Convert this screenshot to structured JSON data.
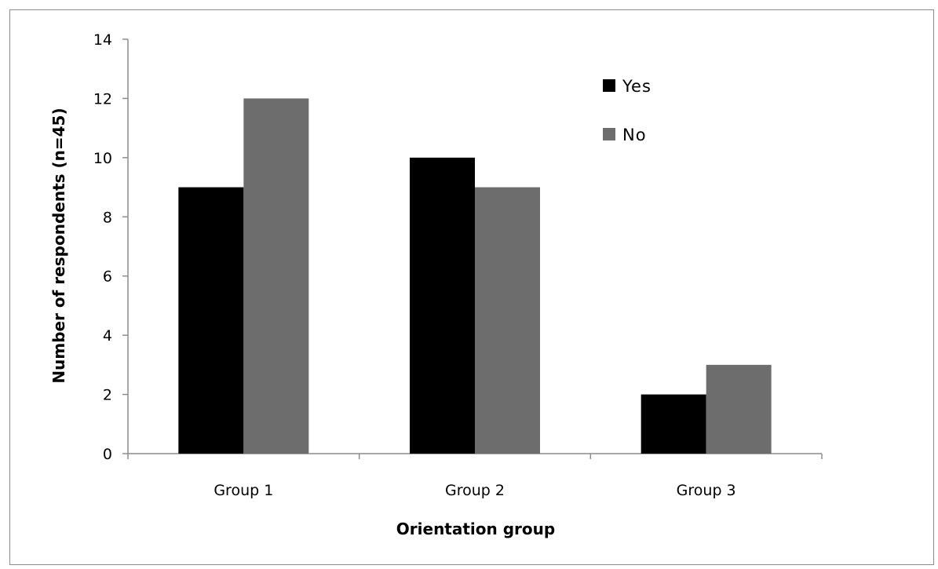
{
  "chart_data": {
    "type": "bar",
    "title": "",
    "xlabel": "Orientation group",
    "ylabel": "Number of respondents (n=45)",
    "categories": [
      "Group 1",
      "Group 2",
      "Group 3"
    ],
    "series": [
      {
        "name": "Yes",
        "values": [
          9,
          10,
          2
        ],
        "color": "#000000"
      },
      {
        "name": "No",
        "values": [
          12,
          9,
          3
        ],
        "color": "#6d6d6d"
      }
    ],
    "ylim": [
      0,
      14
    ],
    "yticks": [
      0,
      2,
      4,
      6,
      8,
      10,
      12,
      14
    ],
    "grid": false,
    "legend_position": "top-right"
  }
}
